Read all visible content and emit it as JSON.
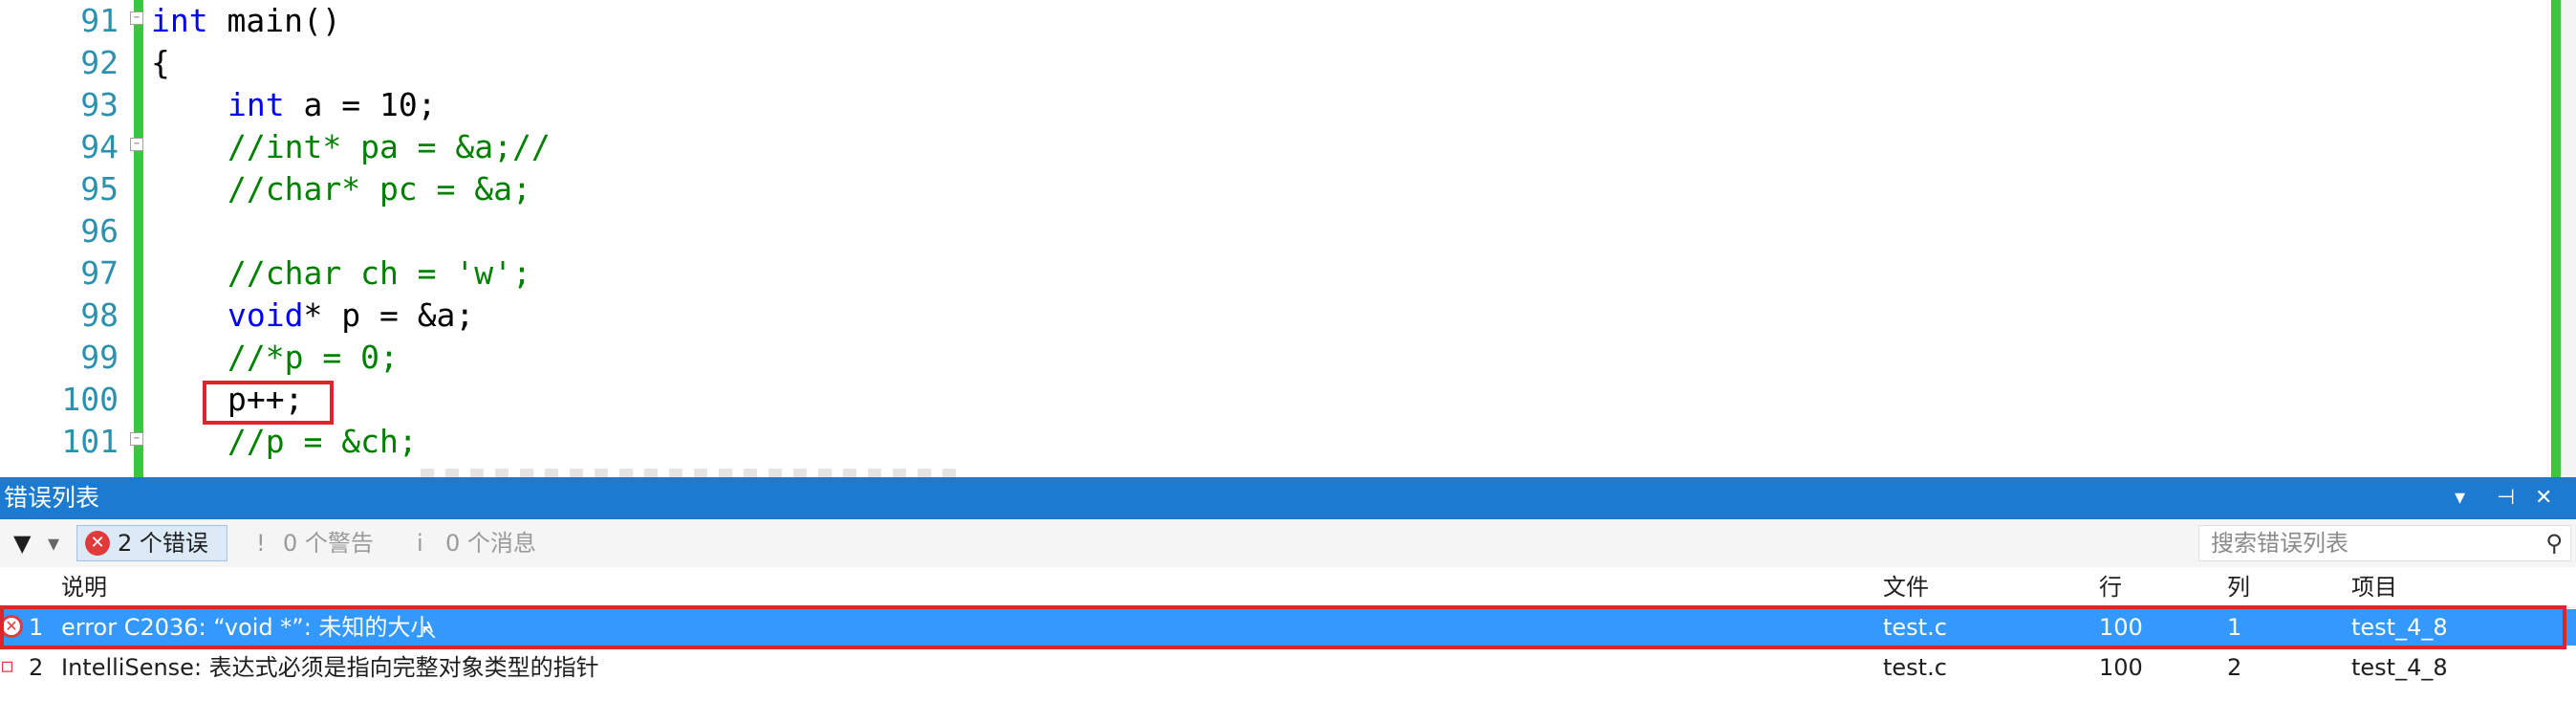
{
  "editor": {
    "lines": [
      {
        "num": "91",
        "parts": [
          {
            "t": "int",
            "c": "kw"
          },
          {
            "t": " main()",
            "c": ""
          }
        ],
        "indent": false,
        "fold": true
      },
      {
        "num": "92",
        "parts": [
          {
            "t": "{",
            "c": ""
          }
        ],
        "indent": false,
        "fold": false
      },
      {
        "num": "93",
        "parts": [
          {
            "t": "int",
            "c": "kw"
          },
          {
            "t": " a = 10;",
            "c": ""
          }
        ],
        "indent": true,
        "fold": false
      },
      {
        "num": "94",
        "parts": [
          {
            "t": "//int* pa = &a;//",
            "c": "cm"
          }
        ],
        "indent": true,
        "fold": true
      },
      {
        "num": "95",
        "parts": [
          {
            "t": "//char* pc = &a;",
            "c": "cm"
          }
        ],
        "indent": true,
        "fold": false
      },
      {
        "num": "96",
        "parts": [],
        "indent": true,
        "fold": false
      },
      {
        "num": "97",
        "parts": [
          {
            "t": "//char ch = 'w';",
            "c": "cm"
          }
        ],
        "indent": true,
        "fold": false
      },
      {
        "num": "98",
        "parts": [
          {
            "t": "void",
            "c": "kw"
          },
          {
            "t": "* p = &a;",
            "c": ""
          }
        ],
        "indent": true,
        "fold": false
      },
      {
        "num": "99",
        "parts": [
          {
            "t": "//*p = 0;",
            "c": "cm"
          }
        ],
        "indent": true,
        "fold": false
      },
      {
        "num": "100",
        "parts": [
          {
            "t": "p++;",
            "c": ""
          }
        ],
        "indent": true,
        "fold": false
      },
      {
        "num": "101",
        "parts": [
          {
            "t": "//p = &ch;",
            "c": "cm"
          }
        ],
        "indent": true,
        "fold": true
      }
    ]
  },
  "error_list": {
    "title": "错误列表",
    "title_controls": [
      "▾",
      "⊣",
      "✕"
    ],
    "filter_icon": "▼",
    "filter_dropdown": "▾",
    "errors_label": "2 个错误",
    "warnings_label": "0 个警告",
    "messages_label": "0 个消息",
    "warning_icon": "!",
    "message_icon": "i",
    "search_placeholder": "搜索错误列表",
    "search_icon": "⚲",
    "columns": {
      "desc": "说明",
      "file": "文件",
      "line": "行",
      "col": "列",
      "project": "项目"
    },
    "rows": [
      {
        "num": "1",
        "desc": "error C2036: “void *”: 未知的大小",
        "file": "test.c",
        "line": "100",
        "col": "1",
        "project": "test_4_8"
      },
      {
        "num": "2",
        "desc": "IntelliSense: 表达式必须是指向完整对象类型的指针",
        "file": "test.c",
        "line": "100",
        "col": "2",
        "project": "test_4_8"
      }
    ]
  }
}
